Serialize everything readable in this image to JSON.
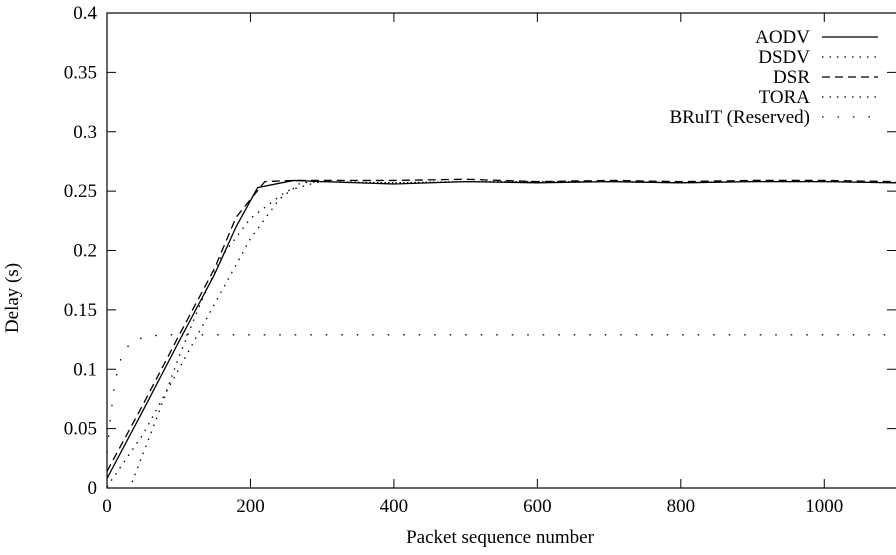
{
  "chart_data": {
    "type": "line",
    "title": "",
    "xlabel": "Packet sequence number",
    "ylabel": "Delay (s)",
    "xlim": [
      0,
      1100
    ],
    "ylim": [
      0,
      0.4
    ],
    "x_ticks": [
      0,
      200,
      400,
      600,
      800,
      1000
    ],
    "x_tick_labels": [
      "0",
      "200",
      "400",
      "600",
      "800",
      "1000"
    ],
    "y_ticks": [
      0,
      0.05,
      0.1,
      0.15,
      0.2,
      0.25,
      0.3,
      0.35,
      0.4
    ],
    "y_tick_labels": [
      "0",
      "0.05",
      "0.1",
      "0.15",
      "0.2",
      "0.25",
      "0.3",
      "0.35",
      "0.4"
    ],
    "grid": false,
    "legend_position": "top-right",
    "series": [
      {
        "name": "AODV",
        "style": "solid",
        "x": [
          0,
          50,
          100,
          150,
          180,
          210,
          260,
          300,
          400,
          500,
          600,
          700,
          800,
          900,
          1000,
          1100
        ],
        "y": [
          0.008,
          0.065,
          0.123,
          0.18,
          0.22,
          0.253,
          0.259,
          0.258,
          0.256,
          0.258,
          0.257,
          0.258,
          0.257,
          0.258,
          0.258,
          0.257
        ]
      },
      {
        "name": "DSDV",
        "style": "dotted",
        "x": [
          0,
          50,
          100,
          150,
          200,
          240,
          270,
          300,
          400,
          500,
          600,
          700,
          800,
          900,
          1000,
          1100
        ],
        "y": [
          0.001,
          0.045,
          0.1,
          0.155,
          0.21,
          0.243,
          0.257,
          0.258,
          0.257,
          0.258,
          0.258,
          0.258,
          0.257,
          0.258,
          0.258,
          0.257
        ]
      },
      {
        "name": "DSR",
        "style": "dashed",
        "x": [
          0,
          50,
          100,
          150,
          180,
          220,
          260,
          300,
          400,
          500,
          600,
          700,
          800,
          900,
          1000,
          1100
        ],
        "y": [
          0.014,
          0.07,
          0.128,
          0.185,
          0.228,
          0.258,
          0.259,
          0.259,
          0.259,
          0.26,
          0.258,
          0.259,
          0.258,
          0.259,
          0.259,
          0.258
        ]
      },
      {
        "name": "TORA",
        "style": "dotted",
        "x": [
          35,
          70,
          100,
          130,
          160,
          200,
          250,
          290,
          300,
          400,
          500,
          600,
          700,
          800,
          900,
          1000,
          1100
        ],
        "y": [
          0.005,
          0.06,
          0.11,
          0.155,
          0.195,
          0.227,
          0.25,
          0.257,
          0.258,
          0.257,
          0.258,
          0.258,
          0.258,
          0.257,
          0.258,
          0.258,
          0.257
        ]
      },
      {
        "name": "BRuIT (Reserved)",
        "style": "sparse-dotted",
        "x": [
          0,
          5,
          10,
          15,
          20,
          30,
          40,
          60,
          80,
          100,
          150,
          200,
          400,
          600,
          800,
          1000,
          1100
        ],
        "y": [
          0.03,
          0.06,
          0.085,
          0.1,
          0.11,
          0.12,
          0.125,
          0.128,
          0.129,
          0.129,
          0.129,
          0.129,
          0.129,
          0.129,
          0.129,
          0.129,
          0.129
        ]
      }
    ]
  }
}
